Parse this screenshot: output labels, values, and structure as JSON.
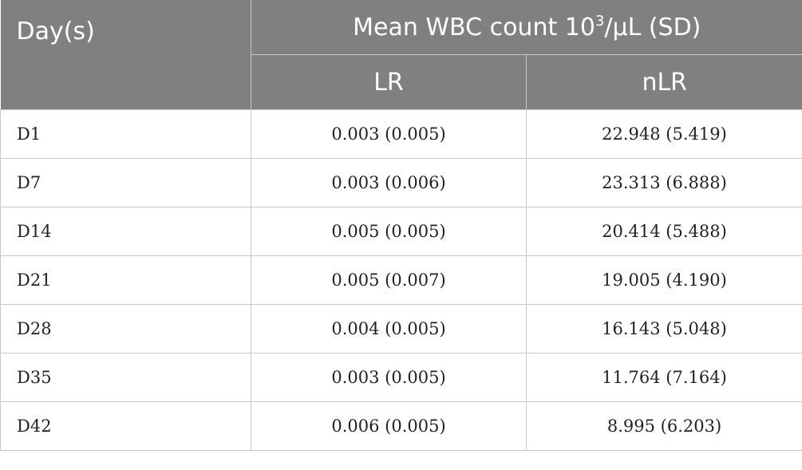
{
  "header": {
    "col_day": "Day(s)",
    "group_label_main": "Mean WBC count 10",
    "group_label_sup": "3",
    "group_label_unit": "/μL (SD)",
    "col_lr": "LR",
    "col_nlr": "nLR"
  },
  "rows": [
    {
      "day": "D1",
      "lr": "0.003 (0.005)",
      "nlr": "22.948 (5.419)"
    },
    {
      "day": "D7",
      "lr": "0.003 (0.006)",
      "nlr": "23.313 (6.888)"
    },
    {
      "day": "D14",
      "lr": "0.005 (0.005)",
      "nlr": "20.414 (5.488)"
    },
    {
      "day": "D21",
      "lr": "0.005 (0.007)",
      "nlr": "19.005 (4.190)"
    },
    {
      "day": "D28",
      "lr": "0.004 (0.005)",
      "nlr": "16.143 (5.048)"
    },
    {
      "day": "D35",
      "lr": "0.003 (0.005)",
      "nlr": "11.764 (7.164)"
    },
    {
      "day": "D42",
      "lr": "0.006 (0.005)",
      "nlr": "8.995 (6.203)"
    }
  ],
  "colors": {
    "header_bg": "#808080",
    "header_text": "#ffffff",
    "grid": "#c8c8c8"
  }
}
